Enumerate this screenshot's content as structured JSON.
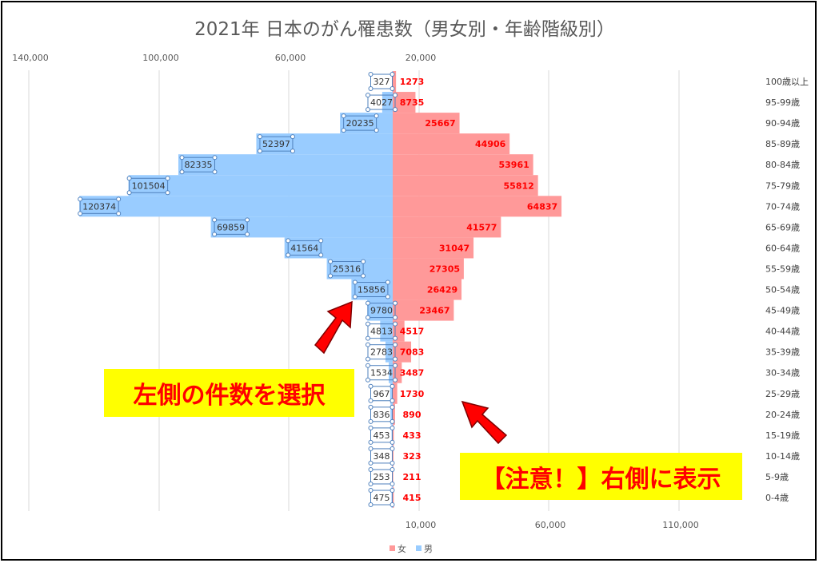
{
  "chart_data": {
    "type": "bar",
    "orientation": "horizontal-butterfly",
    "title": "2021年 日本のがん罹患数（男女別・年齢階級別）",
    "categories": [
      "100歳以上",
      "95-99歳",
      "90-94歳",
      "85-89歳",
      "80-84歳",
      "75-79歳",
      "70-74歳",
      "65-69歳",
      "60-64歳",
      "55-59歳",
      "50-54歳",
      "45-49歳",
      "40-44歳",
      "35-39歳",
      "30-34歳",
      "25-29歳",
      "20-24歳",
      "15-19歳",
      "10-14歳",
      "5-9歳",
      "0-4歳"
    ],
    "series": [
      {
        "name": "女",
        "color": "#ff9999",
        "label_color": "#ff0000",
        "values": [
          1273,
          8735,
          25667,
          44906,
          53961,
          55812,
          64837,
          41577,
          31047,
          27305,
          26429,
          23467,
          4517,
          7083,
          3487,
          1730,
          890,
          433,
          323,
          211,
          415
        ]
      },
      {
        "name": "男",
        "color": "#99ccff",
        "label_color": "#333333",
        "values": [
          327,
          4027,
          20235,
          52397,
          82335,
          101504,
          120374,
          69859,
          41564,
          25316,
          15856,
          9780,
          4813,
          2783,
          1534,
          967,
          836,
          453,
          348,
          253,
          475
        ]
      }
    ],
    "top_axis_ticks": [
      "140,000",
      "100,000",
      "60,000",
      "20,000"
    ],
    "bottom_axis_ticks": [
      "10,000",
      "60,000",
      "110,000"
    ],
    "legend_position": "bottom"
  },
  "callouts": {
    "left": "左側の件数を選択",
    "right": "【注意！】右側に表示"
  }
}
